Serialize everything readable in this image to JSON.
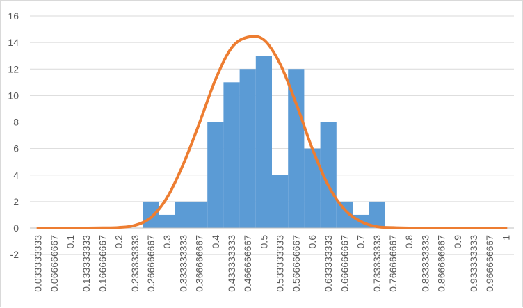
{
  "chart_data": {
    "type": "bar",
    "categories": [
      "0.033333333",
      "0.066666667",
      "0.1",
      "0.133333333",
      "0.166666667",
      "0.2",
      "0.233333333",
      "0.266666667",
      "0.3",
      "0.333333333",
      "0.366666667",
      "0.4",
      "0.433333333",
      "0.466666667",
      "0.5",
      "0.533333333",
      "0.566666667",
      "0.6",
      "0.633333333",
      "0.666666667",
      "0.7",
      "0.733333333",
      "0.766666667",
      "0.8",
      "0.833333333",
      "0.866666667",
      "0.9",
      "0.933333333",
      "0.966666667",
      "1"
    ],
    "series": [
      {
        "type": "bar",
        "values": [
          0,
          0,
          0,
          0,
          0,
          0,
          0,
          2,
          1,
          2,
          2,
          8,
          11,
          12,
          13,
          4,
          12,
          6,
          8,
          2,
          1,
          2,
          0,
          0,
          0,
          0,
          0,
          0,
          0,
          0
        ],
        "color": "#5B9BD5"
      },
      {
        "type": "line",
        "values": [
          0,
          0,
          0,
          0,
          0.01,
          0.04,
          0.2,
          0.8,
          2.3,
          4.8,
          7.9,
          11.2,
          13.6,
          14.4,
          14.2,
          12.4,
          9.4,
          6.0,
          3.2,
          1.4,
          0.5,
          0.1,
          0.03,
          0,
          0,
          0,
          0,
          0,
          0,
          0
        ],
        "color": "#ED7D31"
      }
    ],
    "ylim": [
      -2,
      16
    ],
    "yticks": [
      -2,
      0,
      2,
      4,
      6,
      8,
      10,
      12,
      14,
      16
    ],
    "grid": true,
    "legend": "none",
    "title": "",
    "xlabel": "",
    "ylabel": ""
  },
  "colors": {
    "grid": "#d9d9d9",
    "axis": "#bfbfbf",
    "text": "#595959"
  }
}
